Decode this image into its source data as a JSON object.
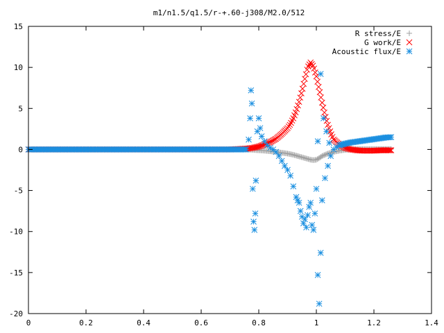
{
  "chart_data": {
    "type": "scatter",
    "title": "m1/n1.5/q1.5/r-+.60-j308/M2.0/512",
    "xlabel": "",
    "ylabel": "",
    "xlim": [
      0,
      1.4
    ],
    "ylim": [
      -20,
      15
    ],
    "x_ticks": [
      0,
      0.2,
      0.4,
      0.6,
      0.8,
      1,
      1.2,
      1.4
    ],
    "x_tick_labels": [
      "0",
      "0.2",
      "0.4",
      "0.6",
      "0.8",
      "1",
      "1.2",
      "1.4"
    ],
    "y_ticks": [
      -20,
      -15,
      -10,
      -5,
      0,
      5,
      10,
      15
    ],
    "y_tick_labels": [
      "-20",
      "-15",
      "-10",
      "-5",
      "0",
      "5",
      "10",
      "15"
    ],
    "grid": false,
    "legend_position": "top-right",
    "series": [
      {
        "name": "R stress/E",
        "marker": "plus",
        "color": "#a0a0a0",
        "points": [
          [
            0.0,
            0.0
          ],
          [
            0.1,
            0.0
          ],
          [
            0.2,
            0.0
          ],
          [
            0.3,
            0.0
          ],
          [
            0.4,
            0.0
          ],
          [
            0.5,
            0.0
          ],
          [
            0.6,
            0.0
          ],
          [
            0.7,
            0.0
          ],
          [
            0.76,
            0.0
          ],
          [
            0.78,
            -0.05
          ],
          [
            0.8,
            -0.1
          ],
          [
            0.82,
            -0.15
          ],
          [
            0.84,
            -0.22
          ],
          [
            0.86,
            -0.3
          ],
          [
            0.88,
            -0.4
          ],
          [
            0.9,
            -0.5
          ],
          [
            0.92,
            -0.65
          ],
          [
            0.94,
            -0.85
          ],
          [
            0.96,
            -1.05
          ],
          [
            0.98,
            -1.25
          ],
          [
            0.99,
            -1.3
          ],
          [
            1.0,
            -1.25
          ],
          [
            1.01,
            -1.05
          ],
          [
            1.02,
            -0.8
          ],
          [
            1.04,
            -0.5
          ],
          [
            1.06,
            -0.3
          ],
          [
            1.08,
            -0.15
          ],
          [
            1.1,
            -0.05
          ],
          [
            1.12,
            0.0
          ],
          [
            1.14,
            0.05
          ],
          [
            1.16,
            0.05
          ],
          [
            1.18,
            0.05
          ],
          [
            1.2,
            0.05
          ],
          [
            1.22,
            0.05
          ],
          [
            1.24,
            0.05
          ],
          [
            1.26,
            0.05
          ]
        ]
      },
      {
        "name": "G work/E",
        "marker": "cross",
        "color": "#ff0000",
        "points": [
          [
            0.0,
            0.0
          ],
          [
            0.1,
            0.0
          ],
          [
            0.2,
            0.0
          ],
          [
            0.3,
            0.0
          ],
          [
            0.4,
            0.0
          ],
          [
            0.5,
            0.0
          ],
          [
            0.6,
            0.0
          ],
          [
            0.7,
            0.0
          ],
          [
            0.76,
            0.1
          ],
          [
            0.78,
            0.2
          ],
          [
            0.8,
            0.35
          ],
          [
            0.82,
            0.6
          ],
          [
            0.84,
            0.9
          ],
          [
            0.86,
            1.3
          ],
          [
            0.88,
            1.9
          ],
          [
            0.9,
            2.6
          ],
          [
            0.91,
            3.1
          ],
          [
            0.92,
            3.8
          ],
          [
            0.93,
            4.7
          ],
          [
            0.94,
            5.8
          ],
          [
            0.95,
            7.1
          ],
          [
            0.96,
            8.6
          ],
          [
            0.97,
            10.0
          ],
          [
            0.98,
            10.6
          ],
          [
            0.99,
            10.1
          ],
          [
            1.0,
            8.9
          ],
          [
            1.01,
            7.3
          ],
          [
            1.02,
            5.7
          ],
          [
            1.03,
            4.2
          ],
          [
            1.04,
            3.0
          ],
          [
            1.05,
            2.0
          ],
          [
            1.06,
            1.2
          ],
          [
            1.08,
            0.6
          ],
          [
            1.1,
            0.2
          ],
          [
            1.12,
            0.0
          ],
          [
            1.14,
            -0.1
          ],
          [
            1.16,
            -0.15
          ],
          [
            1.18,
            -0.15
          ],
          [
            1.2,
            -0.15
          ],
          [
            1.22,
            -0.1
          ],
          [
            1.24,
            -0.1
          ],
          [
            1.26,
            -0.1
          ]
        ]
      },
      {
        "name": "Acoustic flux/E",
        "marker": "star",
        "color": "#1a8fe0",
        "points": [
          [
            0.0,
            0.0
          ],
          [
            0.1,
            0.0
          ],
          [
            0.2,
            0.0
          ],
          [
            0.3,
            0.0
          ],
          [
            0.4,
            0.0
          ],
          [
            0.5,
            0.0
          ],
          [
            0.6,
            0.0
          ],
          [
            0.7,
            0.0
          ],
          [
            0.74,
            0.0
          ],
          [
            0.765,
            1.2
          ],
          [
            0.77,
            3.8
          ],
          [
            0.773,
            7.2
          ],
          [
            0.776,
            5.6
          ],
          [
            0.779,
            -4.8
          ],
          [
            0.782,
            -8.8
          ],
          [
            0.785,
            -9.8
          ],
          [
            0.788,
            -7.8
          ],
          [
            0.79,
            -3.8
          ],
          [
            0.795,
            2.2
          ],
          [
            0.8,
            3.8
          ],
          [
            0.805,
            2.6
          ],
          [
            0.81,
            1.6
          ],
          [
            0.82,
            1.0
          ],
          [
            0.83,
            0.5
          ],
          [
            0.84,
            0.2
          ],
          [
            0.85,
            0.0
          ],
          [
            0.86,
            -0.3
          ],
          [
            0.87,
            -0.8
          ],
          [
            0.88,
            -1.4
          ],
          [
            0.89,
            -2.0
          ],
          [
            0.9,
            -2.5
          ],
          [
            0.91,
            -3.2
          ],
          [
            0.92,
            -4.5
          ],
          [
            0.93,
            -5.8
          ],
          [
            0.935,
            -6.2
          ],
          [
            0.94,
            -6.5
          ],
          [
            0.945,
            -7.5
          ],
          [
            0.95,
            -8.2
          ],
          [
            0.955,
            -9.0
          ],
          [
            0.96,
            -8.5
          ],
          [
            0.965,
            -9.5
          ],
          [
            0.97,
            -8.0
          ],
          [
            0.975,
            -7.0
          ],
          [
            0.98,
            -6.5
          ],
          [
            0.985,
            -9.2
          ],
          [
            0.99,
            -9.8
          ],
          [
            0.995,
            -7.8
          ],
          [
            1.0,
            -4.8
          ],
          [
            1.005,
            -15.3
          ],
          [
            1.01,
            -18.8
          ],
          [
            1.015,
            -12.6
          ],
          [
            1.02,
            -6.2
          ],
          [
            1.03,
            -3.5
          ],
          [
            1.04,
            -2.0
          ],
          [
            1.05,
            -0.8
          ],
          [
            1.06,
            0.0
          ],
          [
            1.07,
            0.3
          ],
          [
            1.08,
            0.5
          ],
          [
            1.1,
            0.7
          ],
          [
            1.12,
            0.85
          ],
          [
            1.14,
            0.95
          ],
          [
            1.16,
            1.05
          ],
          [
            1.18,
            1.15
          ],
          [
            1.2,
            1.25
          ],
          [
            1.22,
            1.35
          ],
          [
            1.24,
            1.45
          ],
          [
            1.26,
            1.5
          ],
          [
            1.005,
            1.0
          ],
          [
            1.015,
            9.2
          ],
          [
            1.025,
            3.8
          ],
          [
            1.035,
            2.2
          ],
          [
            1.045,
            0.8
          ]
        ]
      }
    ]
  }
}
